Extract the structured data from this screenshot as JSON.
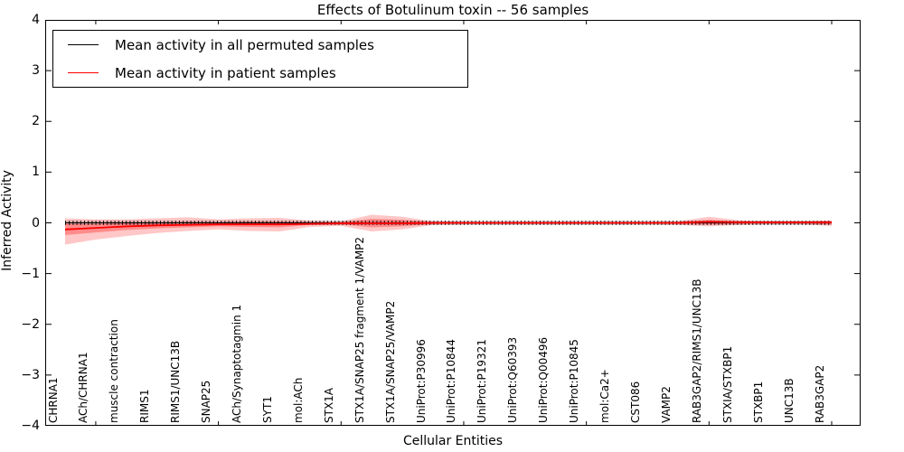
{
  "chart_data": {
    "type": "line",
    "title": "Effects of Botulinum toxin -- 56 samples",
    "xlabel": "Cellular Entities",
    "ylabel": "Inferred Activity",
    "ylim": [
      -4,
      4
    ],
    "grid": false,
    "legend_position": "upper left",
    "yticks": [
      {
        "value": 4,
        "label": "4"
      },
      {
        "value": 3,
        "label": "3"
      },
      {
        "value": 2,
        "label": "2"
      },
      {
        "value": 1,
        "label": "1"
      },
      {
        "value": 0,
        "label": "0"
      },
      {
        "value": -1,
        "label": "−1"
      },
      {
        "value": -2,
        "label": "−2"
      },
      {
        "value": -3,
        "label": "−3"
      },
      {
        "value": -4,
        "label": "−4"
      }
    ],
    "x_major_tick_indices": [
      1,
      5,
      9,
      13,
      17,
      21,
      25
    ],
    "categories": [
      "CHRNA1",
      "ACh/CHRNA1",
      "muscle contraction",
      "RIMS1",
      "RIMS1/UNC13B",
      "SNAP25",
      "ACh/Synaptotagmin 1",
      "SYT1",
      "mol:ACh",
      "STX1A",
      "STX1A/SNAP25 fragment 1/VAMP2",
      "STX1A/SNAP25/VAMP2",
      "UniProt:P30996",
      "UniProt:P10844",
      "UniProt:P19321",
      "UniProt:Q60393",
      "UniProt:Q00496",
      "UniProt:P10845",
      "mol:Ca2+",
      "CST086",
      "VAMP2",
      "RAB3GAP2/RIMS1/UNC13B",
      "STXIA/STXBP1",
      "STXBP1",
      "UNC13B",
      "RAB3GAP2"
    ],
    "legend": [
      {
        "label": "Mean activity in all permuted samples",
        "color": "#000000"
      },
      {
        "label": "Mean activity in patient samples",
        "color": "#ff0000"
      }
    ],
    "colors": {
      "permuted_line": "#000000",
      "patient_line": "#ff0000",
      "permuted_band": "#aaaaaa",
      "patient_band": "#ff0000"
    },
    "series": [
      {
        "name": "Mean activity in all permuted samples",
        "color": "#000000",
        "values": [
          0,
          0,
          0,
          0,
          0,
          0,
          0,
          0,
          0,
          0,
          0,
          0,
          0,
          0,
          0,
          0,
          0,
          0,
          0,
          0,
          0,
          0,
          0,
          0,
          0,
          0
        ],
        "band_upper": [
          0.045,
          0.045,
          0.045,
          0.045,
          0.045,
          0.045,
          0.045,
          0.045,
          0.045,
          0.045,
          0.045,
          0.045,
          0.045,
          0.045,
          0.045,
          0.045,
          0.045,
          0.045,
          0.045,
          0.045,
          0.045,
          0.045,
          0.045,
          0.045,
          0.045,
          0.045
        ],
        "band_lower": [
          -0.045,
          -0.045,
          -0.045,
          -0.045,
          -0.045,
          -0.045,
          -0.045,
          -0.045,
          -0.045,
          -0.045,
          -0.045,
          -0.045,
          -0.045,
          -0.045,
          -0.045,
          -0.045,
          -0.045,
          -0.045,
          -0.045,
          -0.045,
          -0.045,
          -0.045,
          -0.045,
          -0.045,
          -0.045,
          -0.045
        ]
      },
      {
        "name": "Mean activity in patient samples",
        "color": "#ff0000",
        "values": [
          -0.13,
          -0.1,
          -0.07,
          -0.05,
          -0.04,
          -0.03,
          -0.03,
          -0.03,
          -0.02,
          -0.01,
          -0.01,
          -0.01,
          0,
          0,
          0,
          0,
          0,
          0,
          0,
          0,
          0,
          0.02,
          0.01,
          0.01,
          0.01,
          0.01
        ],
        "band_upper": [
          0.09,
          0.07,
          0.07,
          0.09,
          0.11,
          0.07,
          0.09,
          0.1,
          0.04,
          0.03,
          0.16,
          0.12,
          0.03,
          0.02,
          0.02,
          0.02,
          0.02,
          0.02,
          0.02,
          0.02,
          0.03,
          0.12,
          0.05,
          0.03,
          0.03,
          0.05
        ],
        "band_lower": [
          -0.43,
          -0.33,
          -0.26,
          -0.2,
          -0.16,
          -0.13,
          -0.16,
          -0.17,
          -0.08,
          -0.06,
          -0.17,
          -0.13,
          -0.04,
          -0.03,
          -0.03,
          -0.03,
          -0.03,
          -0.03,
          -0.03,
          -0.03,
          -0.04,
          -0.07,
          -0.04,
          -0.03,
          -0.03,
          -0.06
        ],
        "inner_band_upper": [
          -0.02,
          -0.02,
          -0.01,
          0.0,
          0.02,
          0.01,
          0.02,
          0.02,
          0.01,
          0.01,
          0.08,
          0.06,
          0.01,
          0.01,
          0.01,
          0.01,
          0.01,
          0.01,
          0.01,
          0.01,
          0.01,
          0.06,
          0.02,
          0.015,
          0.015,
          0.02
        ],
        "inner_band_lower": [
          -0.24,
          -0.19,
          -0.14,
          -0.11,
          -0.09,
          -0.07,
          -0.08,
          -0.09,
          -0.04,
          -0.03,
          -0.09,
          -0.07,
          -0.02,
          -0.015,
          -0.015,
          -0.015,
          -0.015,
          -0.015,
          -0.015,
          -0.015,
          -0.02,
          -0.03,
          -0.02,
          -0.015,
          -0.015,
          -0.03
        ]
      }
    ]
  }
}
